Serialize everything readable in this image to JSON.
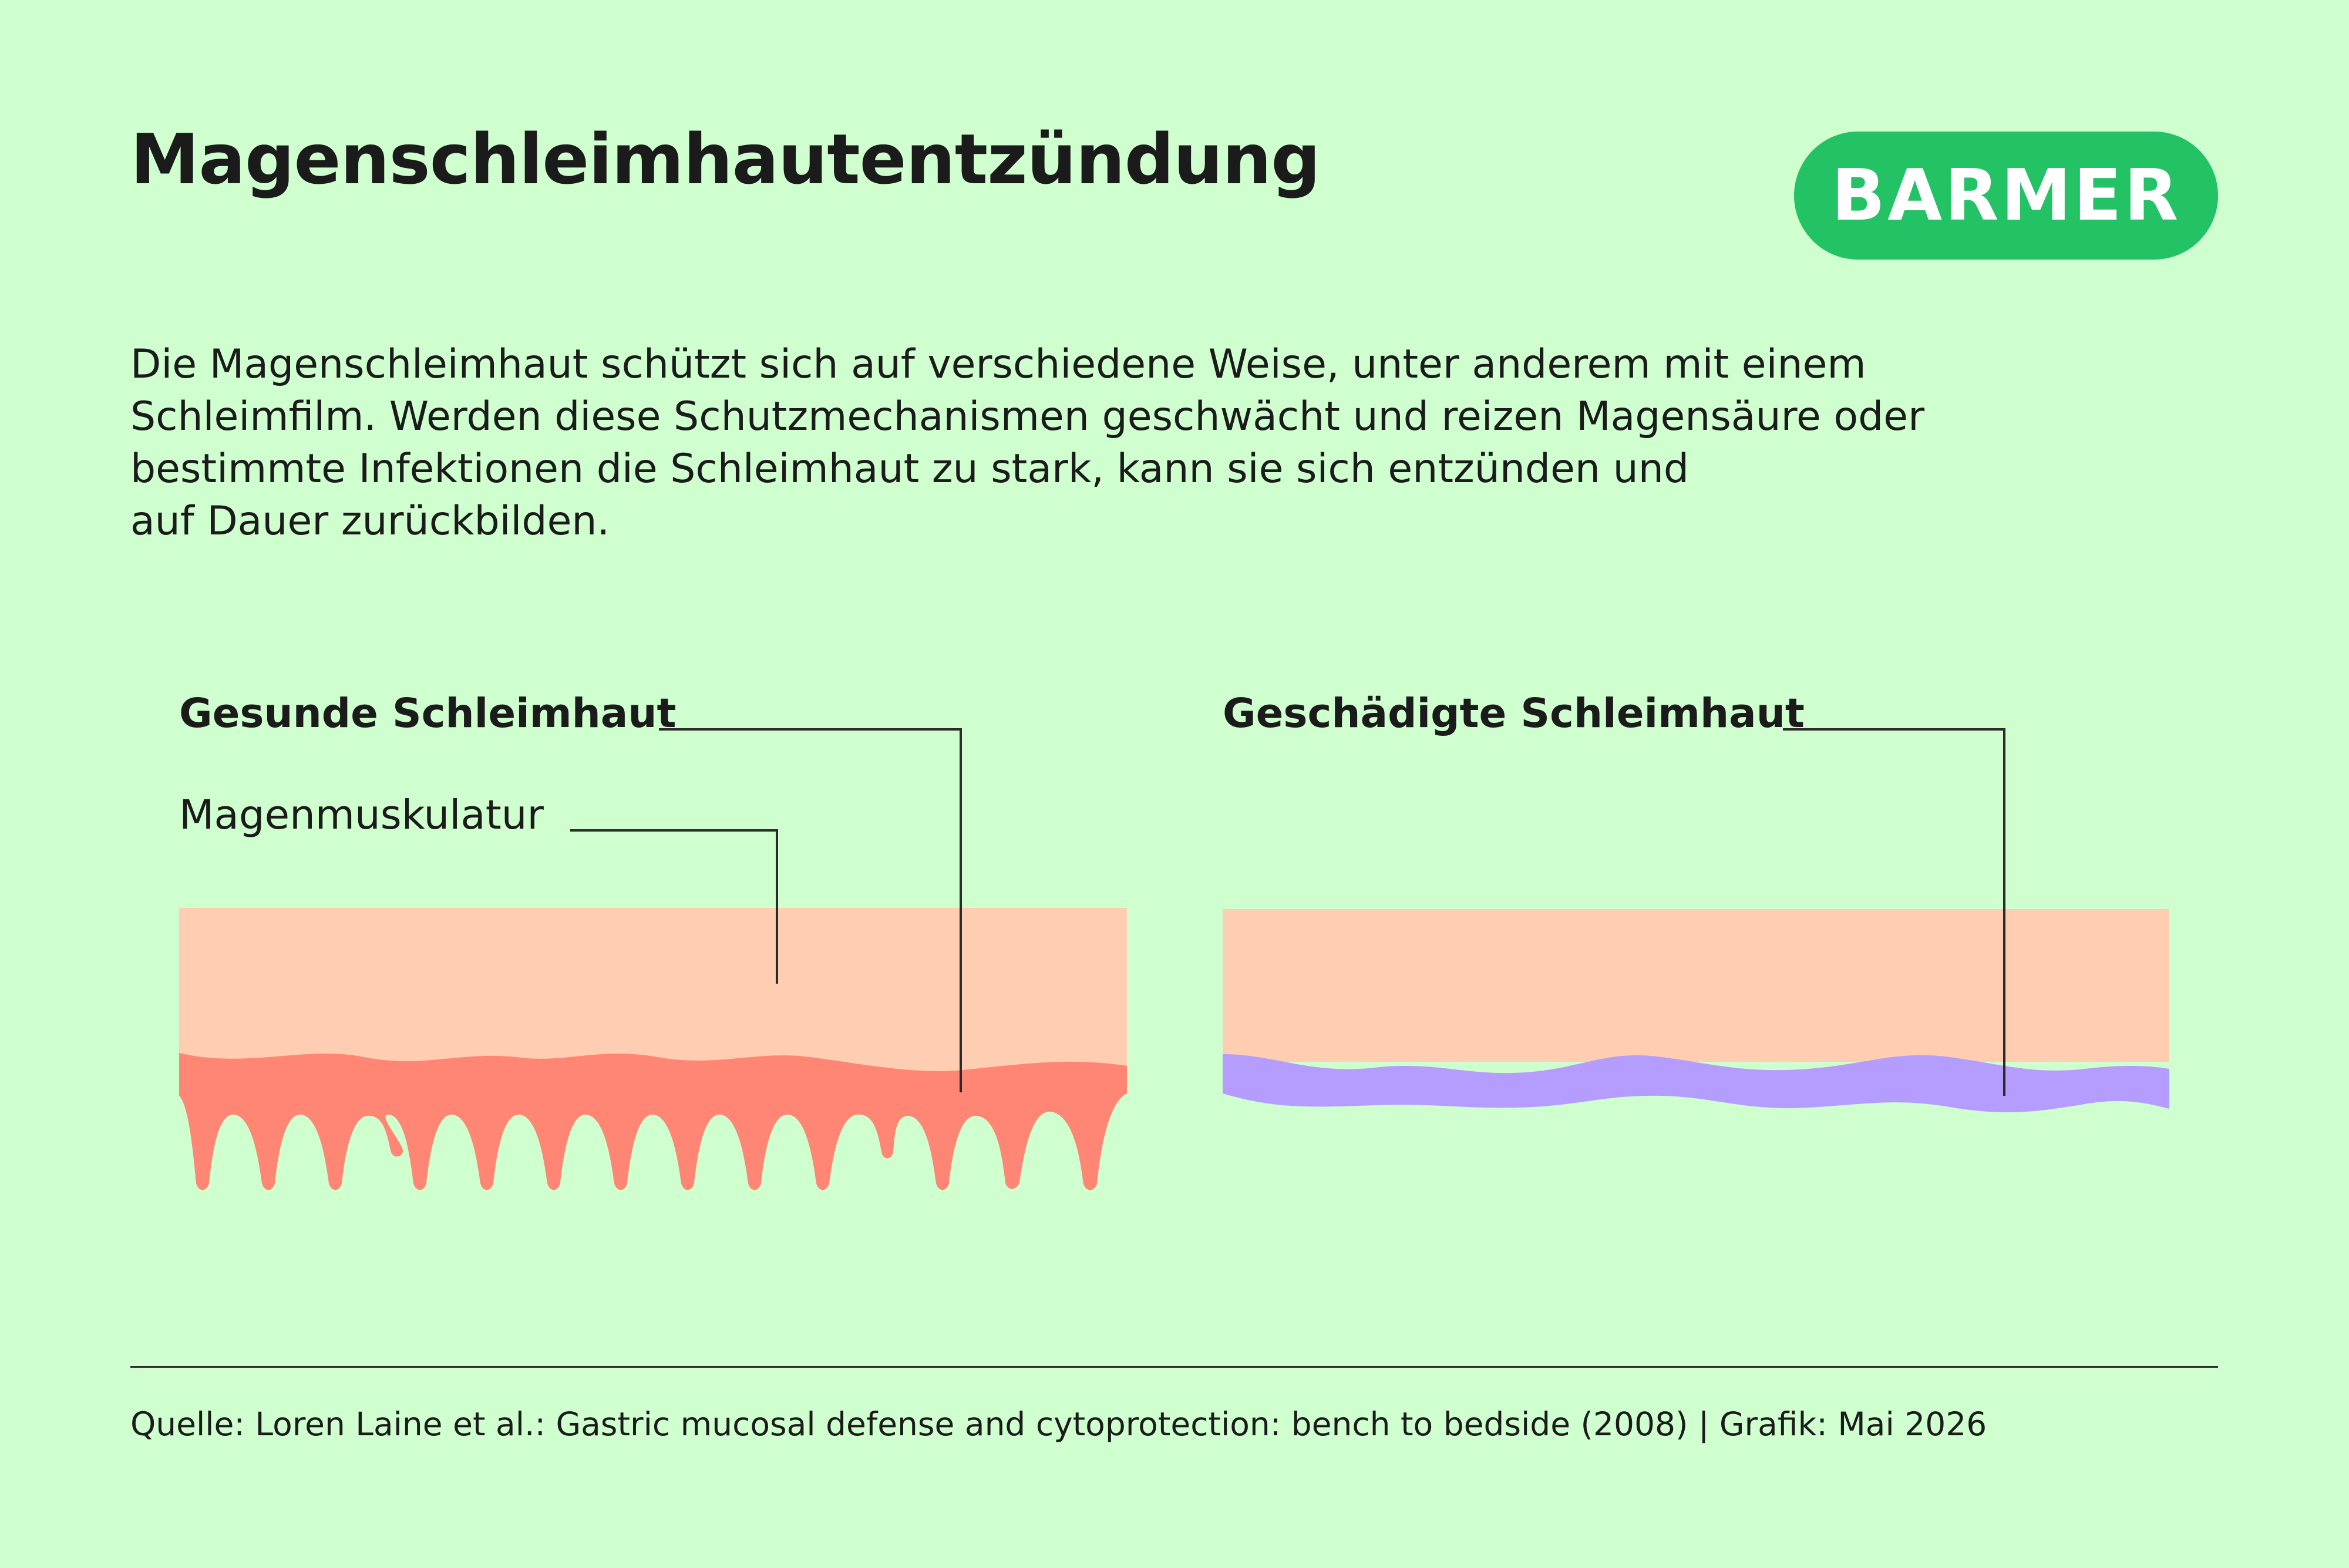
{
  "header": {
    "title": "Magenschleimhautentzündung",
    "logo_text": "BARMER"
  },
  "intro": {
    "lines": [
      "Die Magenschleimhaut schützt sich auf verschiedene Weise, unter anderem mit einem",
      "Schleimfilm. Werden diese Schutzmechanismen geschwächt und reizen Magensäure oder",
      "bestimmte Infektionen die Schleimhaut zu stark, kann sie sich entzünden und",
      "auf Dauer zurückbilden."
    ]
  },
  "diagram": {
    "healthy": {
      "label": "Gesunde Schleimhaut",
      "muscle_label": "Magenmuskulatur"
    },
    "damaged": {
      "label": "Geschädigte Schleimhaut"
    }
  },
  "colors": {
    "background": "#cfffce",
    "muscle": "#ffcdb1",
    "healthy_mucosa": "#ff8674",
    "damaged_mucosa": "#b49dff",
    "brand": "#22c265",
    "text": "#1b1b1b"
  },
  "footer": {
    "source": "Quelle: Loren Laine et al.: Gastric mucosal defense and cytoprotection: bench to bedside (2008) | Grafik: Mai 2026"
  }
}
